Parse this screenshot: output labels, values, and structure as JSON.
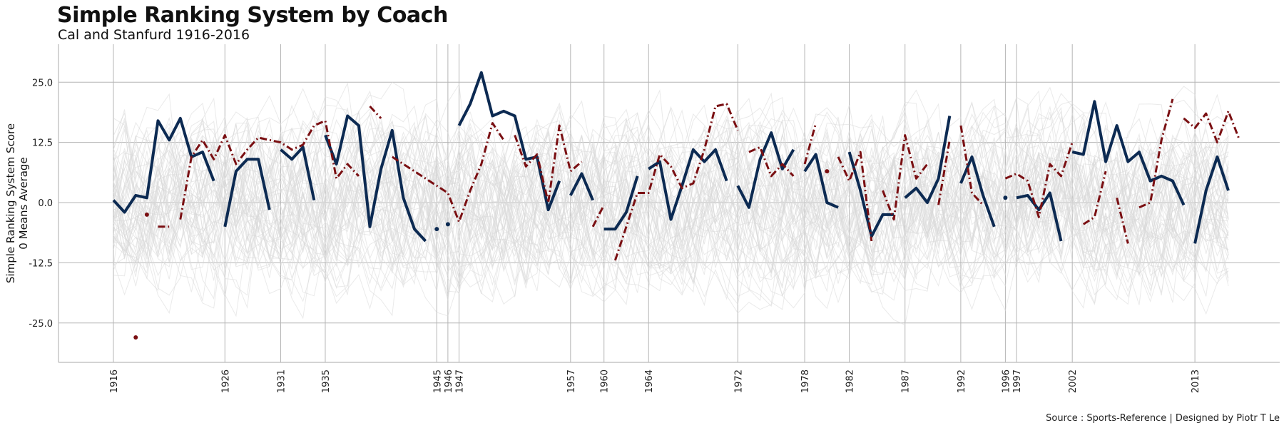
{
  "title": "Simple Ranking System by Coach",
  "subtitle": "Cal and Stanfurd 1916-2016",
  "caption": "Source : Sports-Reference | Designed by Piotr T Le",
  "chart_data": {
    "type": "line",
    "ylabel_line1": "Simple Ranking System Score",
    "ylabel_line2": "0 Means Average",
    "xlim": [
      1916,
      2016
    ],
    "ylim": [
      -33,
      33
    ],
    "y_ticks": [
      25.0,
      12.5,
      0.0,
      -12.5,
      -25.0
    ],
    "y_tick_labels": [
      "25.0",
      "12.5",
      "0.0",
      "-12.5",
      "-25.0"
    ],
    "x_ticks": [
      1916,
      1926,
      1931,
      1935,
      1945,
      1946,
      1947,
      1957,
      1960,
      1964,
      1972,
      1978,
      1982,
      1987,
      1992,
      1996,
      1997,
      2002,
      2013
    ],
    "grid": true,
    "background_series_color": "#d9d9d9",
    "series": [
      {
        "color": "#0c2a52",
        "style": "solid",
        "segments": [
          [
            [
              1916,
              0.5
            ],
            [
              1917,
              -2
            ],
            [
              1918,
              1.5
            ],
            [
              1919,
              1
            ],
            [
              1920,
              17
            ],
            [
              1921,
              13
            ],
            [
              1922,
              17.5
            ],
            [
              1923,
              9.5
            ],
            [
              1924,
              10.5
            ],
            [
              1925,
              4.5
            ]
          ],
          [
            [
              1926,
              -5
            ],
            [
              1927,
              6.5
            ],
            [
              1928,
              9
            ],
            [
              1929,
              9
            ],
            [
              1930,
              -1.5
            ]
          ],
          [
            [
              1931,
              11
            ],
            [
              1932,
              9
            ],
            [
              1933,
              11.5
            ],
            [
              1934,
              0.5
            ]
          ],
          [
            [
              1935,
              14
            ],
            [
              1936,
              8
            ],
            [
              1937,
              18
            ],
            [
              1938,
              16
            ],
            [
              1939,
              -5
            ],
            [
              1940,
              7
            ],
            [
              1941,
              15
            ],
            [
              1942,
              1
            ],
            [
              1943,
              -5.5
            ],
            [
              1944,
              -8
            ]
          ],
          [
            [
              1945,
              -5.5
            ]
          ],
          [
            [
              1946,
              -4.5
            ]
          ],
          [
            [
              1947,
              16
            ],
            [
              1948,
              20.5
            ],
            [
              1949,
              27
            ],
            [
              1950,
              18
            ],
            [
              1951,
              19
            ],
            [
              1952,
              18
            ],
            [
              1953,
              9
            ],
            [
              1954,
              9.5
            ],
            [
              1955,
              -1.5
            ],
            [
              1956,
              4.5
            ]
          ],
          [
            [
              1957,
              1.5
            ],
            [
              1958,
              6
            ],
            [
              1959,
              0.5
            ]
          ],
          [
            [
              1960,
              -5.5
            ],
            [
              1961,
              -5.5
            ],
            [
              1962,
              -2
            ],
            [
              1963,
              5.5
            ]
          ],
          [
            [
              1964,
              7
            ],
            [
              1965,
              8.5
            ],
            [
              1966,
              -3.5
            ],
            [
              1967,
              3.5
            ],
            [
              1968,
              11
            ],
            [
              1969,
              8.5
            ],
            [
              1970,
              11
            ],
            [
              1971,
              4.5
            ]
          ],
          [
            [
              1972,
              3.5
            ],
            [
              1973,
              -1
            ],
            [
              1974,
              9
            ],
            [
              1975,
              14.5
            ],
            [
              1976,
              7
            ],
            [
              1977,
              11
            ]
          ],
          [
            [
              1978,
              6.5
            ],
            [
              1979,
              10
            ],
            [
              1980,
              0
            ],
            [
              1981,
              -1
            ]
          ],
          [
            [
              1982,
              10.5
            ],
            [
              1983,
              2.5
            ],
            [
              1984,
              -7
            ],
            [
              1985,
              -2.5
            ],
            [
              1986,
              -2.5
            ]
          ],
          [
            [
              1987,
              1
            ],
            [
              1988,
              3
            ],
            [
              1989,
              0
            ],
            [
              1990,
              5
            ],
            [
              1991,
              18
            ]
          ],
          [
            [
              1992,
              4
            ],
            [
              1993,
              9.5
            ],
            [
              1994,
              1.5
            ],
            [
              1995,
              -5
            ]
          ],
          [
            [
              1996,
              1
            ]
          ],
          [
            [
              1997,
              1
            ],
            [
              1998,
              1.5
            ],
            [
              1999,
              -1.5
            ],
            [
              2000,
              2
            ],
            [
              2001,
              -8
            ]
          ],
          [
            [
              2002,
              10.5
            ],
            [
              2003,
              10
            ],
            [
              2004,
              21
            ],
            [
              2005,
              8.5
            ],
            [
              2006,
              16
            ],
            [
              2007,
              8.5
            ],
            [
              2008,
              10.5
            ],
            [
              2009,
              4.5
            ],
            [
              2010,
              5.5
            ],
            [
              2011,
              4.5
            ],
            [
              2012,
              -0.5
            ]
          ],
          [
            [
              2013,
              -8.5
            ],
            [
              2014,
              2.5
            ],
            [
              2015,
              9.5
            ],
            [
              2016,
              2.5
            ]
          ]
        ]
      },
      {
        "color": "#7a0f12",
        "style": "dashdot",
        "segments": [
          [
            [
              1918,
              -28
            ]
          ],
          [
            [
              1919,
              -2.5
            ]
          ],
          [
            [
              1920,
              -5
            ],
            [
              1921,
              -5
            ]
          ],
          [
            [
              1922,
              -3.5
            ],
            [
              1923,
              9.5
            ],
            [
              1924,
              13
            ],
            [
              1925,
              9
            ],
            [
              1926,
              14
            ],
            [
              1927,
              8
            ],
            [
              1928,
              11
            ],
            [
              1929,
              13.5
            ],
            [
              1930,
              13
            ],
            [
              1931,
              12.5
            ],
            [
              1932,
              11
            ],
            [
              1933,
              12
            ],
            [
              1934,
              16
            ],
            [
              1935,
              17
            ],
            [
              1936,
              5
            ],
            [
              1937,
              8
            ],
            [
              1938,
              5.5
            ]
          ],
          [
            [
              1939,
              20
            ],
            [
              1940,
              17.5
            ]
          ],
          [
            [
              1941,
              9.5
            ],
            [
              1942,
              8
            ],
            [
              1943,
              6.5
            ],
            [
              1944,
              5
            ],
            [
              1945,
              3.5
            ],
            [
              1946,
              2
            ],
            [
              1947,
              -4
            ],
            [
              1948,
              2.5
            ],
            [
              1949,
              8
            ],
            [
              1950,
              16.5
            ],
            [
              1951,
              13
            ]
          ],
          [
            [
              1952,
              14
            ],
            [
              1953,
              7.5
            ],
            [
              1954,
              10
            ],
            [
              1955,
              0
            ],
            [
              1956,
              16
            ],
            [
              1957,
              6.5
            ],
            [
              1958,
              8.5
            ]
          ],
          [
            [
              1959,
              -5
            ],
            [
              1960,
              -0.5
            ]
          ],
          [
            [
              1961,
              -12
            ],
            [
              1962,
              -5
            ],
            [
              1963,
              2
            ],
            [
              1964,
              2
            ],
            [
              1965,
              10
            ],
            [
              1966,
              7.5
            ],
            [
              1967,
              3
            ],
            [
              1968,
              4
            ],
            [
              1969,
              11
            ],
            [
              1970,
              20
            ],
            [
              1971,
              20.5
            ],
            [
              1972,
              15
            ]
          ],
          [
            [
              1973,
              10.5
            ],
            [
              1974,
              11.5
            ],
            [
              1975,
              5.5
            ],
            [
              1976,
              8
            ],
            [
              1977,
              5.5
            ]
          ],
          [
            [
              1978,
              8
            ],
            [
              1979,
              16.5
            ]
          ],
          [
            [
              1980,
              6.5
            ]
          ],
          [
            [
              1981,
              9.5
            ],
            [
              1982,
              4.5
            ],
            [
              1983,
              10.5
            ],
            [
              1984,
              -8
            ]
          ],
          [
            [
              1985,
              2.5
            ],
            [
              1986,
              -3.5
            ],
            [
              1987,
              14
            ],
            [
              1988,
              5
            ],
            [
              1989,
              8
            ]
          ],
          [
            [
              1990,
              -0.5
            ],
            [
              1991,
              13
            ]
          ],
          [
            [
              1992,
              16
            ],
            [
              1993,
              2
            ],
            [
              1994,
              -0.5
            ]
          ],
          [
            [
              1996,
              5
            ],
            [
              1997,
              6
            ],
            [
              1998,
              4.5
            ],
            [
              1999,
              -3
            ],
            [
              2000,
              8
            ],
            [
              2001,
              5.5
            ],
            [
              2002,
              12.5
            ]
          ],
          [
            [
              2003,
              -4.5
            ],
            [
              2004,
              -3
            ],
            [
              2005,
              6.5
            ]
          ],
          [
            [
              2006,
              1
            ],
            [
              2007,
              -8.5
            ]
          ],
          [
            [
              2008,
              -1
            ],
            [
              2009,
              0
            ],
            [
              2010,
              13
            ],
            [
              2011,
              21.5
            ]
          ],
          [
            [
              2012,
              17.5
            ],
            [
              2013,
              15.5
            ],
            [
              2014,
              18.5
            ],
            [
              2015,
              12.5
            ],
            [
              2016,
              19
            ],
            [
              2017,
              13
            ]
          ]
        ]
      }
    ]
  }
}
